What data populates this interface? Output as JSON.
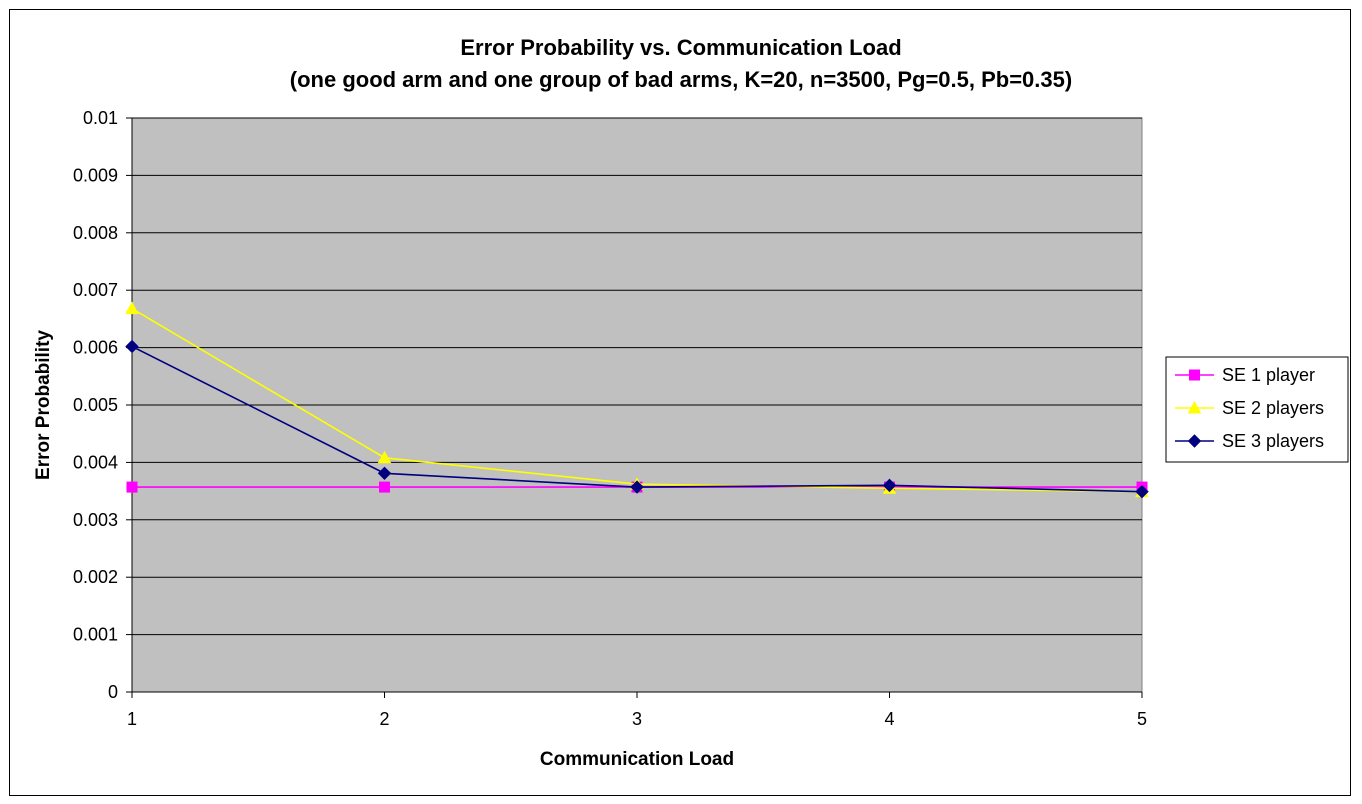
{
  "chart_data": {
    "type": "line",
    "title": "Error Probability vs. Communication Load",
    "subtitle": "(one good arm and one group of bad arms, K=20, n=3500, Pg=0.5, Pb=0.35)",
    "xlabel": "Communication Load",
    "ylabel": "Error Probability",
    "x": [
      1,
      2,
      3,
      4,
      5
    ],
    "x_tick_labels": [
      "1",
      "2",
      "3",
      "4",
      "5"
    ],
    "ylim": [
      0,
      0.01
    ],
    "y_tick_labels": [
      "0",
      "0.001",
      "0.002",
      "0.003",
      "0.004",
      "0.005",
      "0.006",
      "0.007",
      "0.008",
      "0.009",
      "0.01"
    ],
    "y_ticks": [
      0,
      0.001,
      0.002,
      0.003,
      0.004,
      0.005,
      0.006,
      0.007,
      0.008,
      0.009,
      0.01
    ],
    "grid": true,
    "plot_background": "#c0c0c0",
    "legend_position": "right",
    "series": [
      {
        "name": "SE 1 player",
        "color": "#ff00ff",
        "marker": "square",
        "values": [
          0.00357,
          0.00357,
          0.00357,
          0.00357,
          0.00357
        ]
      },
      {
        "name": "SE 2 players",
        "color": "#ffff00",
        "marker": "triangle",
        "values": [
          0.00668,
          0.00408,
          0.00362,
          0.00355,
          0.00349
        ]
      },
      {
        "name": "SE 3 players",
        "color": "#000080",
        "marker": "diamond",
        "values": [
          0.00602,
          0.00381,
          0.00357,
          0.0036,
          0.00349
        ]
      }
    ]
  }
}
